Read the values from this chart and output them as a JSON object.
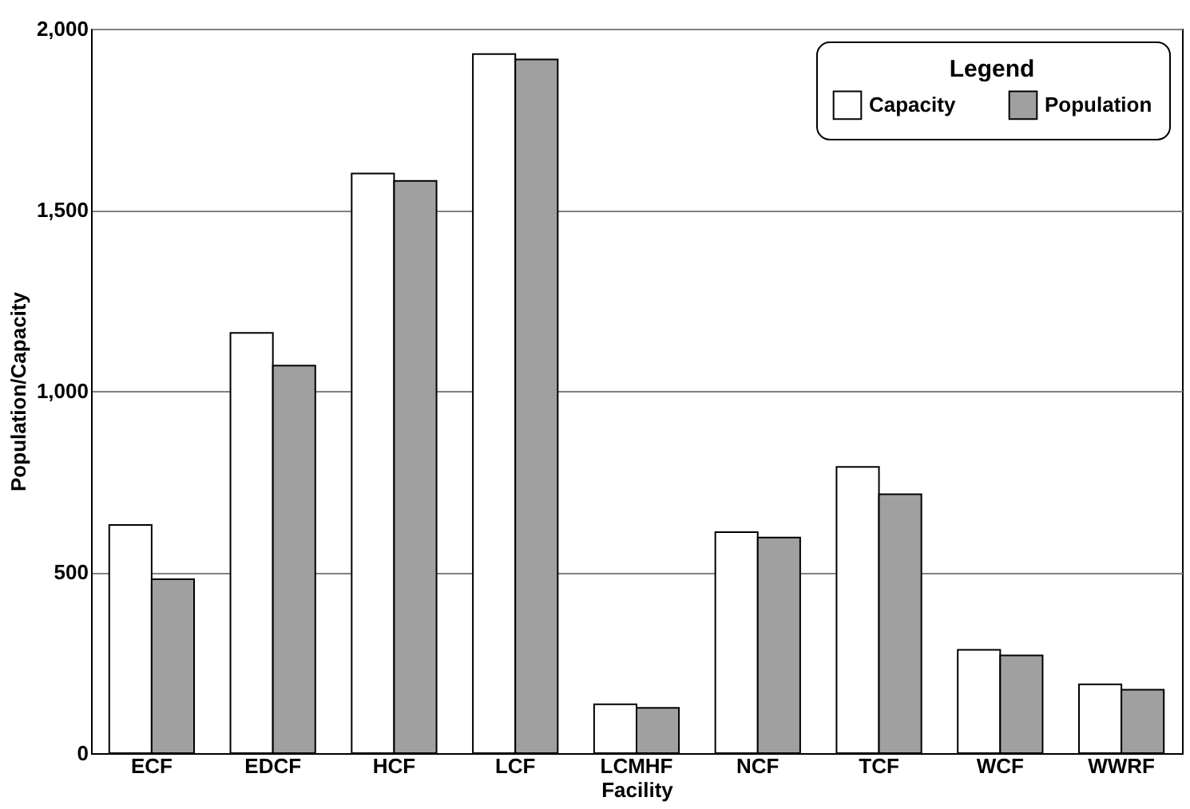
{
  "chart_data": {
    "type": "bar",
    "xlabel": "Facility",
    "ylabel": "Population/Capacity",
    "legend_title": "Legend",
    "categories": [
      "ECF",
      "EDCF",
      "HCF",
      "LCF",
      "LCMHF",
      "NCF",
      "TCF",
      "WCF",
      "WWRF"
    ],
    "series": [
      {
        "name": "Capacity",
        "color": "#ffffff",
        "values": [
          630,
          1160,
          1600,
          1930,
          135,
          610,
          790,
          285,
          190
        ]
      },
      {
        "name": "Population",
        "color": "#a0a0a0",
        "values": [
          480,
          1070,
          1580,
          1915,
          125,
          595,
          715,
          270,
          175
        ]
      }
    ],
    "ylim": [
      0,
      2000
    ],
    "yticks": [
      {
        "value": 0,
        "label": "0"
      },
      {
        "value": 500,
        "label": "500"
      },
      {
        "value": 1000,
        "label": "1,000"
      },
      {
        "value": 1500,
        "label": "1,500"
      },
      {
        "value": 2000,
        "label": "2,000"
      }
    ],
    "grid": "y",
    "legend": "top right"
  }
}
